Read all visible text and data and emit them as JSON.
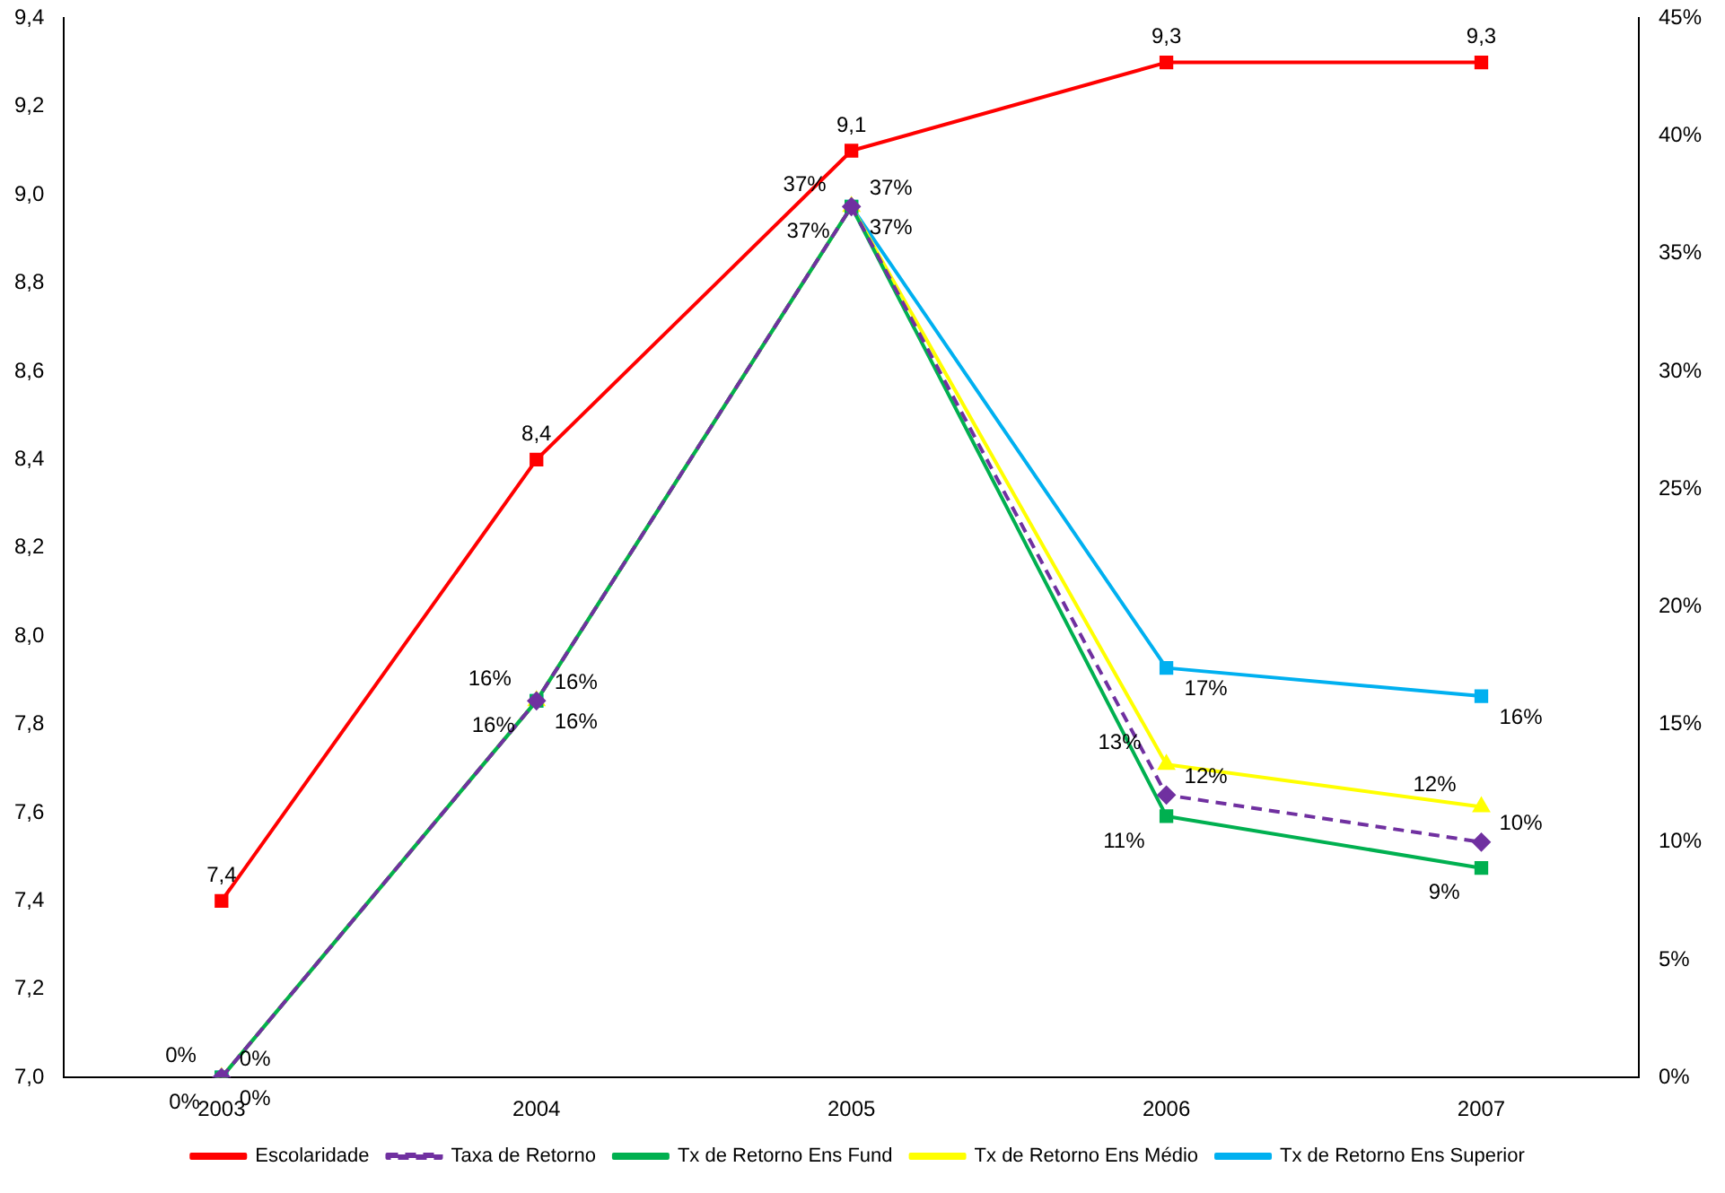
{
  "chart_data": {
    "type": "line",
    "categories": [
      "2003",
      "2004",
      "2005",
      "2006",
      "2007"
    ],
    "ylim": [
      7.0,
      9.4
    ],
    "yticks": [
      {
        "value": 7.0,
        "label": "7,0"
      },
      {
        "value": 7.2,
        "label": "7,2"
      },
      {
        "value": 7.4,
        "label": "7,4"
      },
      {
        "value": 7.6,
        "label": "7,6"
      },
      {
        "value": 7.8,
        "label": "7,8"
      },
      {
        "value": 8.0,
        "label": "8,0"
      },
      {
        "value": 8.2,
        "label": "8,2"
      },
      {
        "value": 8.4,
        "label": "8,4"
      },
      {
        "value": 8.6,
        "label": "8,6"
      },
      {
        "value": 8.8,
        "label": "8,8"
      },
      {
        "value": 9.0,
        "label": "9,0"
      },
      {
        "value": 9.2,
        "label": "9,2"
      },
      {
        "value": 9.4,
        "label": "9,4"
      }
    ],
    "y2lim": [
      0,
      45
    ],
    "y2ticks": [
      {
        "value": 0,
        "label": "0%"
      },
      {
        "value": 5,
        "label": "5%"
      },
      {
        "value": 10,
        "label": "10%"
      },
      {
        "value": 15,
        "label": "15%"
      },
      {
        "value": 20,
        "label": "20%"
      },
      {
        "value": 25,
        "label": "25%"
      },
      {
        "value": 30,
        "label": "30%"
      },
      {
        "value": 35,
        "label": "35%"
      },
      {
        "value": 40,
        "label": "40%"
      },
      {
        "value": 45,
        "label": "45%"
      }
    ],
    "grid": false,
    "legend": "bottom",
    "series": [
      {
        "name": "Escolaridade",
        "color": "#ff0000",
        "marker": "square",
        "line_style": "solid",
        "values": [
          7.4,
          8.4,
          9.1,
          9.3,
          9.3
        ],
        "value_labels": [
          "7,4",
          "8,4",
          "9,1",
          "9,3",
          "9,3"
        ]
      },
      {
        "name": "Taxa de Retorno",
        "color": "#7030a0",
        "marker": "diamond",
        "line_style": "dashed",
        "axis": "y2",
        "values": [
          0,
          16,
          37,
          12,
          10
        ],
        "value_labels": [
          "0%",
          "16%",
          "37%",
          "12%",
          "10%"
        ]
      },
      {
        "name": "Tx de Retorno Ens Fund",
        "color": "#00b050",
        "marker": "square",
        "line_style": "solid",
        "axis": "y2",
        "values": [
          0,
          16,
          37,
          11.1,
          8.9
        ],
        "value_labels": [
          "0%",
          "16%",
          "37%",
          "11%",
          "9%"
        ]
      },
      {
        "name": "Tx de Retorno Ens Médio",
        "color": "#ffff00",
        "marker": "triangle",
        "line_style": "solid",
        "axis": "y2",
        "values": [
          0,
          16,
          37,
          13.3,
          11.5
        ],
        "value_labels": [
          "0%",
          "16%",
          "37%",
          "13%",
          "12%"
        ]
      },
      {
        "name": "Tx de Retorno Ens Superior",
        "color": "#00b0f0",
        "marker": "square",
        "line_style": "solid",
        "axis": "y2",
        "values": [
          0,
          16,
          37,
          17.4,
          16.2
        ],
        "value_labels": [
          "0%",
          "16%",
          "37%",
          "17%",
          "16%"
        ]
      }
    ]
  }
}
